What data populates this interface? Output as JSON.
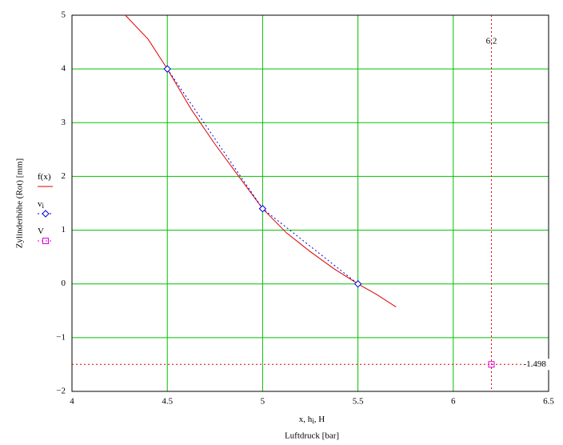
{
  "chart_data": {
    "type": "line",
    "xlabel": [
      "x, h",
      "i",
      ", H"
    ],
    "xlabel2": "Luftdruck [bar]",
    "ylabel": "Zylinderhöhe (Rot) [mm]",
    "xlim": [
      4,
      6.5
    ],
    "ylim": [
      -2,
      5
    ],
    "xticks": [
      4,
      4.5,
      5,
      5.5,
      6,
      6.5
    ],
    "yticks": [
      {
        "value": -2,
        "label": "−2"
      },
      {
        "value": -1,
        "label": "−1"
      },
      0,
      1,
      2,
      3,
      4,
      5
    ],
    "grid": true,
    "grid_color": "#00c000",
    "series": [
      {
        "name": "f(x)",
        "color": "#e00000",
        "style": "solid",
        "x": [
          4.28,
          4.4,
          4.5,
          4.625,
          4.75,
          4.875,
          5,
          5.125,
          5.25,
          5.375,
          5.5,
          5.6,
          5.7
        ],
        "values": [
          5,
          4.55,
          4,
          3.25,
          2.6,
          2.0,
          1.4,
          0.95,
          0.6,
          0.28,
          0,
          -0.2,
          -0.43
        ]
      },
      {
        "name": "v",
        "name_sub": "i",
        "color": "#0000e0",
        "style": "dotted",
        "marker": "diamond",
        "x": [
          4.5,
          5,
          5.5
        ],
        "values": [
          4,
          1.4,
          0
        ]
      },
      {
        "name": "V",
        "color": "#e000e0",
        "style": "dotted",
        "marker": "square",
        "x": [
          6.2
        ],
        "values": [
          -1.498
        ]
      }
    ],
    "crosshair": {
      "x": 6.2,
      "y": -1.498,
      "color": "#e00000"
    }
  }
}
